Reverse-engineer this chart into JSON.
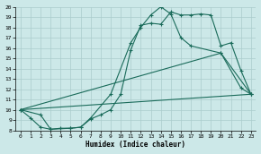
{
  "xlabel": "Humidex (Indice chaleur)",
  "xlim": [
    -0.5,
    23.5
  ],
  "ylim": [
    8,
    20
  ],
  "yticks": [
    8,
    9,
    10,
    11,
    12,
    13,
    14,
    15,
    16,
    17,
    18,
    19,
    20
  ],
  "xticks": [
    0,
    1,
    2,
    3,
    4,
    5,
    6,
    7,
    8,
    9,
    10,
    11,
    12,
    13,
    14,
    15,
    16,
    17,
    18,
    19,
    20,
    21,
    22,
    23
  ],
  "bg_color": "#cce8e8",
  "line_color": "#1a6b5a",
  "grid_color": "#aacccc",
  "curve1_x": [
    0,
    1,
    2,
    3,
    4,
    5,
    6,
    7,
    8,
    9,
    10,
    11,
    12,
    13,
    14,
    15,
    16,
    17,
    18,
    19,
    20,
    21,
    22,
    23
  ],
  "curve1_y": [
    10.0,
    9.2,
    8.3,
    8.1,
    8.2,
    8.2,
    8.3,
    9.1,
    9.5,
    10.0,
    11.5,
    15.8,
    18.2,
    18.4,
    18.3,
    19.5,
    19.2,
    19.2,
    19.3,
    19.2,
    16.2,
    16.5,
    13.8,
    11.5
  ],
  "curve2_x": [
    0,
    2,
    3,
    5,
    6,
    7,
    9,
    11,
    12,
    13,
    14,
    15,
    16,
    17,
    20,
    22,
    23
  ],
  "curve2_y": [
    10.0,
    9.5,
    8.1,
    8.2,
    8.3,
    9.2,
    11.5,
    16.5,
    18.0,
    19.2,
    20.0,
    19.3,
    17.0,
    16.2,
    15.5,
    12.1,
    11.5
  ],
  "line3_x": [
    0,
    23
  ],
  "line3_y": [
    10.0,
    11.5
  ],
  "line4_x": [
    0,
    20,
    23
  ],
  "line4_y": [
    10.0,
    15.5,
    11.5
  ]
}
